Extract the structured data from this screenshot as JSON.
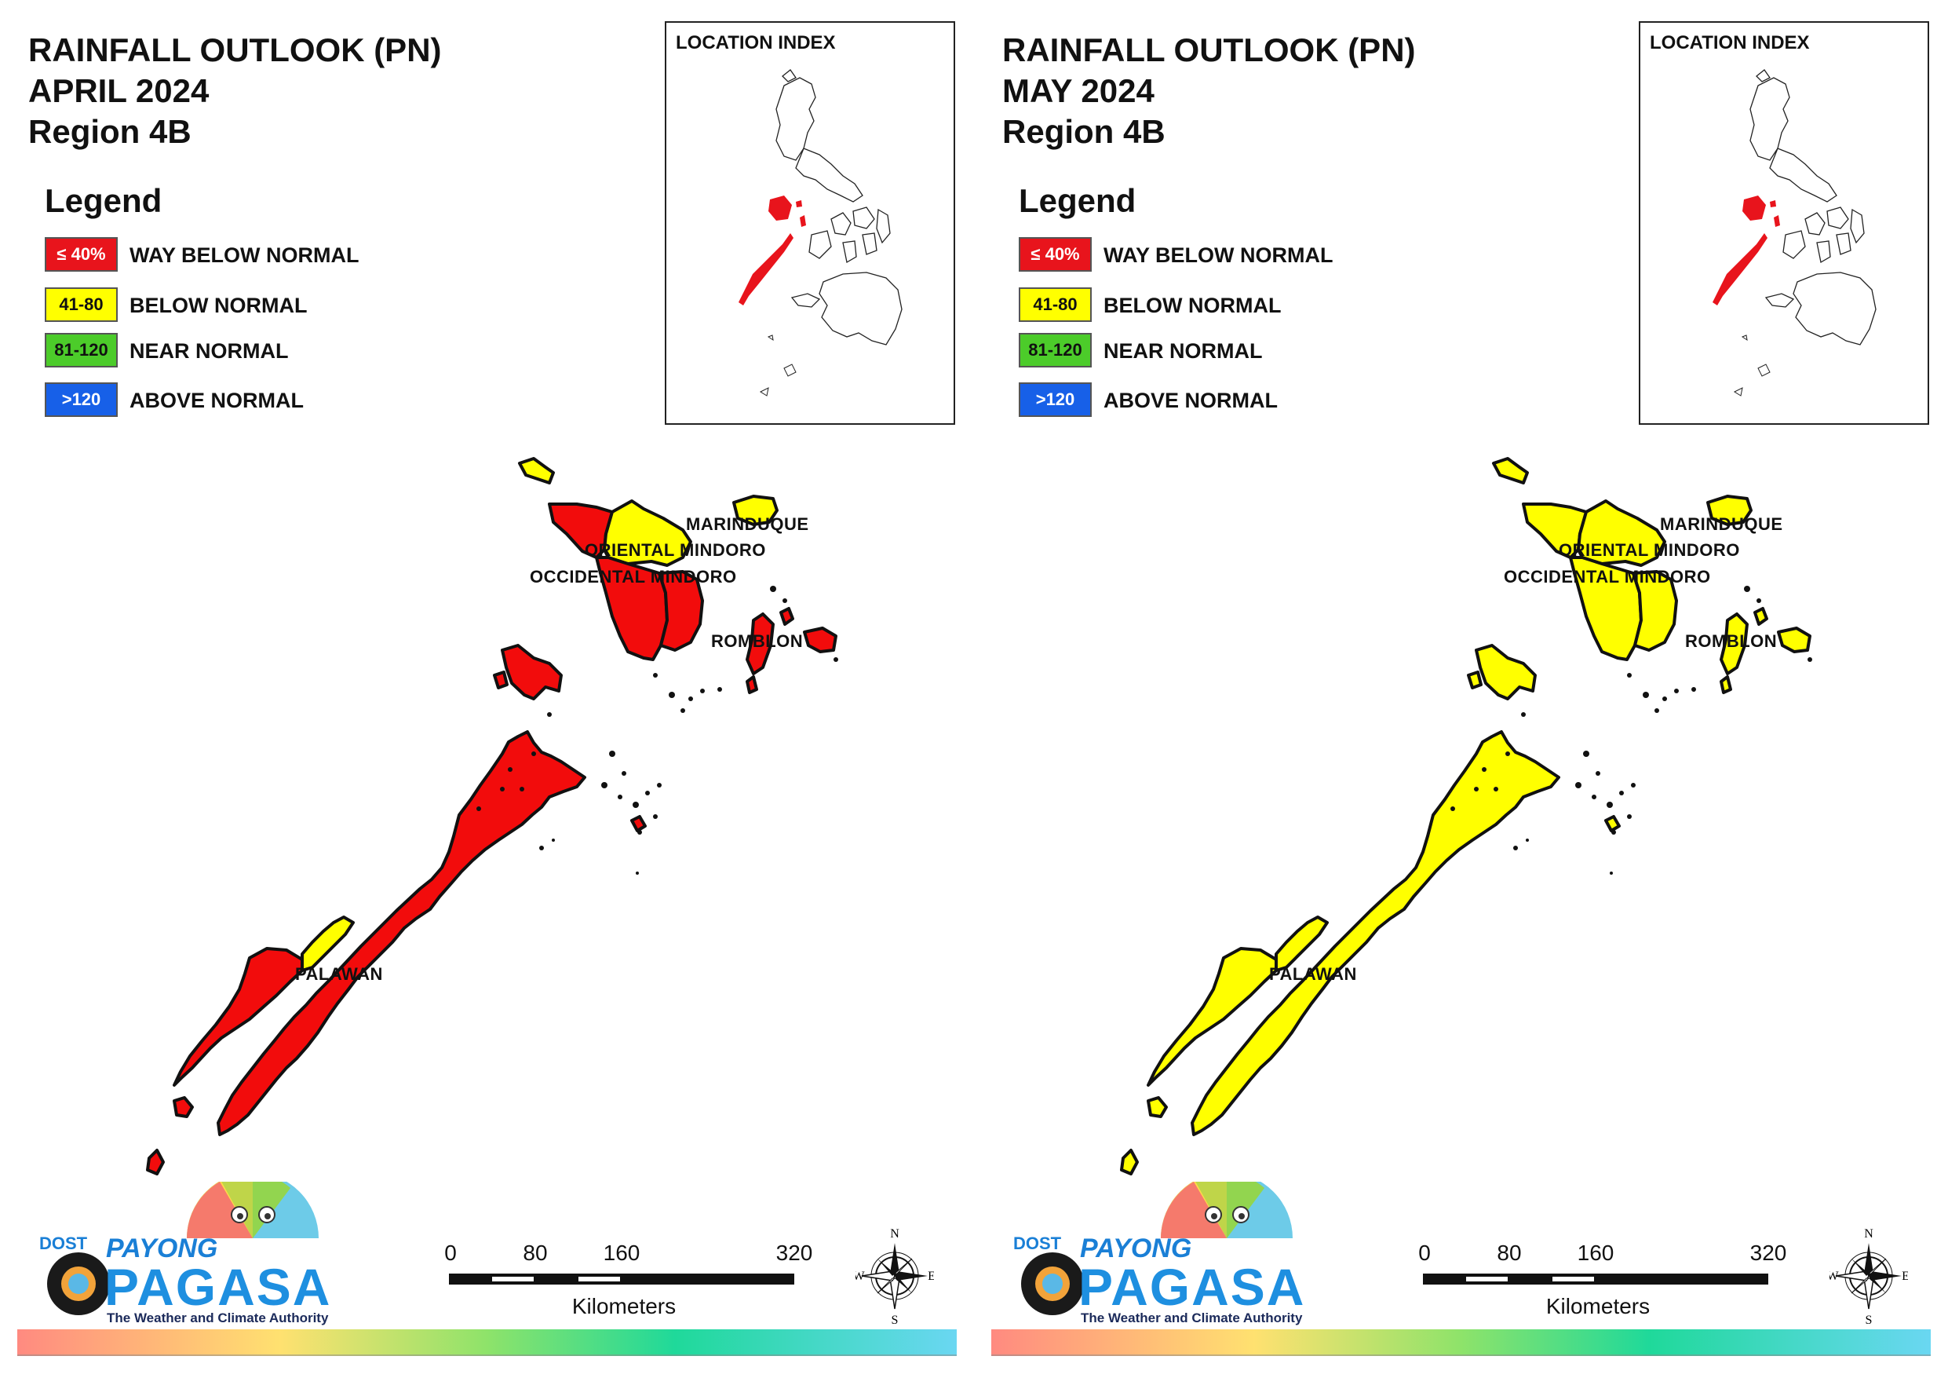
{
  "panels": [
    {
      "title_line1": "RAINFALL OUTLOOK (PN)",
      "title_line2": "APRIL 2024",
      "title_line3": "Region 4B",
      "province_colors": {
        "palawan_north": "#f20c0c",
        "palawan_mid": "#ffff00",
        "palawan_south": "#f20c0c",
        "occidental_mindoro_north": "#f20c0c",
        "occidental_mindoro_south": "#f20c0c",
        "oriental_mindoro_north": "#ffff00",
        "oriental_mindoro_south": "#f20c0c",
        "marinduque": "#ffff00",
        "romblon": "#f20c0c",
        "lubang": "#ffff00",
        "cuyo": "#f20c0c"
      }
    },
    {
      "title_line1": "RAINFALL OUTLOOK (PN)",
      "title_line2": "MAY 2024",
      "title_line3": "Region 4B",
      "province_colors": {
        "palawan_north": "#ffff00",
        "palawan_mid": "#ffff00",
        "palawan_south": "#ffff00",
        "occidental_mindoro_north": "#ffff00",
        "occidental_mindoro_south": "#ffff00",
        "oriental_mindoro_north": "#ffff00",
        "oriental_mindoro_south": "#ffff00",
        "marinduque": "#ffff00",
        "romblon": "#ffff00",
        "lubang": "#ffff00",
        "cuyo": "#ffff00"
      }
    }
  ],
  "legend": {
    "heading": "Legend",
    "items": [
      {
        "range": "≤ 40%",
        "label": "WAY BELOW NORMAL",
        "color": "#e8141c",
        "text_color": "#ffffff"
      },
      {
        "range": "41-80",
        "label": "BELOW NORMAL",
        "color": "#ffff00",
        "text_color": "#111111"
      },
      {
        "range": "81-120",
        "label": "NEAR NORMAL",
        "color": "#4ccc2a",
        "text_color": "#111111"
      },
      {
        "range": ">120",
        "label": "ABOVE NORMAL",
        "color": "#1760e8",
        "text_color": "#ffffff"
      }
    ]
  },
  "location_index": {
    "title": "LOCATION INDEX",
    "highlight_color": "#e8141c"
  },
  "map_labels": {
    "marinduque": "MARINDUQUE",
    "oriental_mindoro": "ORIENTAL MINDORO",
    "occidental_mindoro": "OCCIDENTAL MINDORO",
    "romblon": "ROMBLON",
    "palawan": "PALAWAN"
  },
  "logo": {
    "dost": "DOST",
    "payong": "PAYONG",
    "pagasa": "PAGASA",
    "tagline": "The Weather and Climate Authority"
  },
  "scale_bar": {
    "ticks": [
      "0",
      "80",
      "160",
      "320"
    ],
    "unit": "Kilometers"
  },
  "compass": {
    "n": "N",
    "e": "E",
    "s": "S",
    "w": "W"
  }
}
